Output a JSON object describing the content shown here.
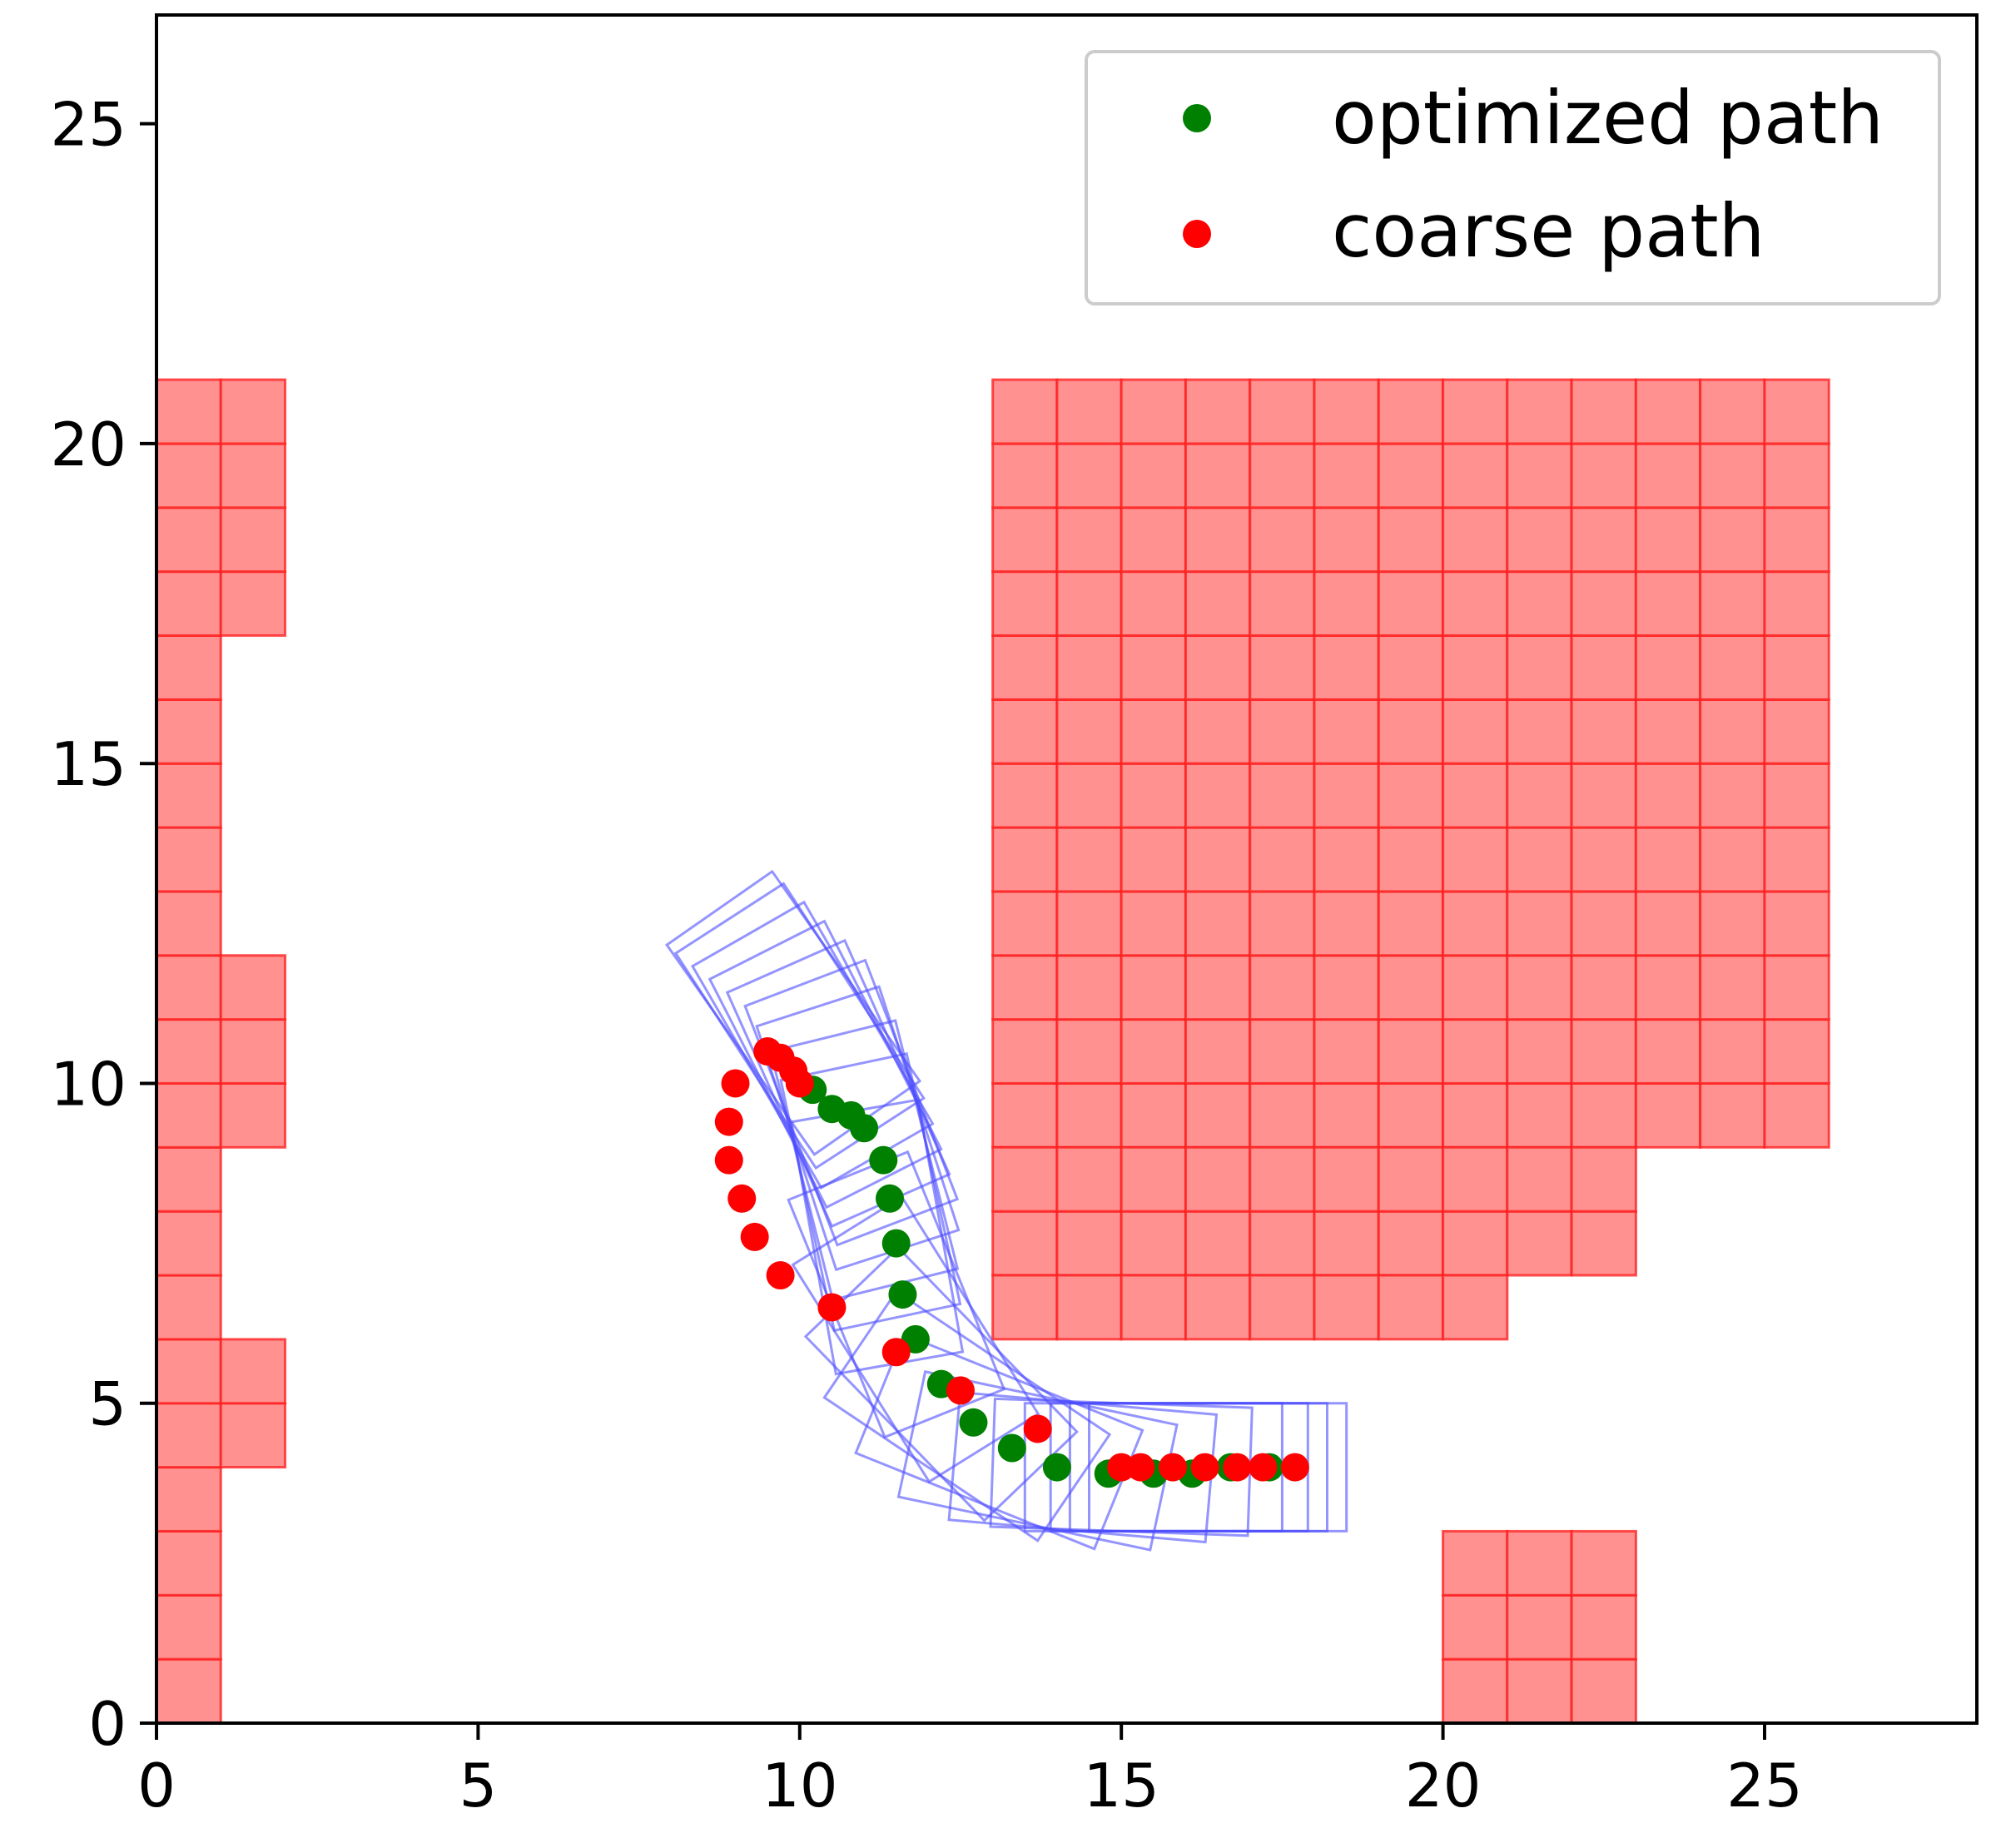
{
  "chart_data": {
    "type": "scatter",
    "title": "",
    "xlabel": "",
    "ylabel": "",
    "xlim": [
      0,
      28.3
    ],
    "ylim": [
      0,
      26.7
    ],
    "grid": false,
    "legend_position": "top-right",
    "x_ticks": [
      0,
      5,
      10,
      15,
      20,
      25
    ],
    "y_ticks": [
      0,
      5,
      10,
      15,
      20,
      25
    ],
    "x_tick_labels": [
      "0",
      "5",
      "10",
      "15",
      "20",
      "25"
    ],
    "y_tick_labels": [
      "0",
      "5",
      "10",
      "15",
      "20",
      "25"
    ],
    "colors": {
      "optimized": "#008000",
      "coarse": "#ff0000",
      "obstacle_fill": "#ff9191",
      "obstacle_edge": "#ff1a1a",
      "footprint": "#4d4dff"
    },
    "obstacle_rects": [
      {
        "x0": 0,
        "y0": 0,
        "x1": 1,
        "y1": 21
      },
      {
        "x0": 1,
        "y0": 17,
        "x1": 2,
        "y1": 21
      },
      {
        "x0": 1,
        "y0": 9,
        "x1": 2,
        "y1": 12
      },
      {
        "x0": 1,
        "y0": 4,
        "x1": 2,
        "y1": 6
      },
      {
        "x0": 13,
        "y0": 9,
        "x1": 26,
        "y1": 21
      },
      {
        "x0": 13,
        "y0": 7,
        "x1": 23,
        "y1": 9
      },
      {
        "x0": 13,
        "y0": 6,
        "x1": 21,
        "y1": 7
      },
      {
        "x0": 20,
        "y0": 0,
        "x1": 23,
        "y1": 3
      }
    ],
    "series": [
      {
        "name": "optimized path",
        "color": "#008000",
        "x": [
          10.2,
          10.5,
          10.8,
          11.0,
          11.3,
          11.4,
          11.5,
          11.6,
          11.8,
          12.2,
          12.7,
          13.3,
          14.0,
          14.8,
          15.5,
          16.1,
          16.7,
          17.3
        ],
        "y": [
          9.9,
          9.6,
          9.5,
          9.3,
          8.8,
          8.2,
          7.5,
          6.7,
          6.0,
          5.3,
          4.7,
          4.3,
          4.0,
          3.9,
          3.9,
          3.9,
          4.0,
          4.0
        ]
      },
      {
        "name": "coarse path",
        "color": "#ff0000",
        "x": [
          9.0,
          8.9,
          8.9,
          9.1,
          9.3,
          9.7,
          10.5,
          11.5,
          12.5,
          13.7,
          15.0,
          15.3,
          15.8,
          16.3,
          16.8,
          17.2,
          17.7,
          9.5,
          9.7,
          9.9,
          10.0
        ],
        "y": [
          10.0,
          9.4,
          8.8,
          8.2,
          7.6,
          7.0,
          6.5,
          5.8,
          5.2,
          4.6,
          4.0,
          4.0,
          4.0,
          4.0,
          4.0,
          4.0,
          4.0,
          10.5,
          10.4,
          10.2,
          10.0
        ]
      }
    ],
    "vehicle_footprints": [
      {
        "cx": 9.9,
        "cy": 11.1,
        "angle": -55
      },
      {
        "cx": 10.0,
        "cy": 10.9,
        "angle": -57
      },
      {
        "cx": 10.2,
        "cy": 10.6,
        "angle": -60
      },
      {
        "cx": 10.4,
        "cy": 10.3,
        "angle": -63
      },
      {
        "cx": 10.6,
        "cy": 10.0,
        "angle": -66
      },
      {
        "cx": 10.8,
        "cy": 9.7,
        "angle": -69
      },
      {
        "cx": 10.9,
        "cy": 9.3,
        "angle": -72
      },
      {
        "cx": 11.0,
        "cy": 8.8,
        "angle": -76
      },
      {
        "cx": 11.1,
        "cy": 8.3,
        "angle": -78
      },
      {
        "cx": 11.2,
        "cy": 7.6,
        "angle": -80
      },
      {
        "cx": 11.5,
        "cy": 6.7,
        "angle": -68
      },
      {
        "cx": 11.8,
        "cy": 6.0,
        "angle": -58
      },
      {
        "cx": 12.2,
        "cy": 5.3,
        "angle": -46
      },
      {
        "cx": 12.6,
        "cy": 4.8,
        "angle": -34
      },
      {
        "cx": 13.1,
        "cy": 4.4,
        "angle": -22
      },
      {
        "cx": 13.7,
        "cy": 4.1,
        "angle": -12
      },
      {
        "cx": 14.4,
        "cy": 4.0,
        "angle": -5
      },
      {
        "cx": 15.0,
        "cy": 4.0,
        "angle": -2
      },
      {
        "cx": 15.5,
        "cy": 4.0,
        "angle": 0
      },
      {
        "cx": 15.9,
        "cy": 4.0,
        "angle": 0
      },
      {
        "cx": 16.2,
        "cy": 4.0,
        "angle": 0
      },
      {
        "cx": 16.5,
        "cy": 4.0,
        "angle": 0
      }
    ]
  }
}
